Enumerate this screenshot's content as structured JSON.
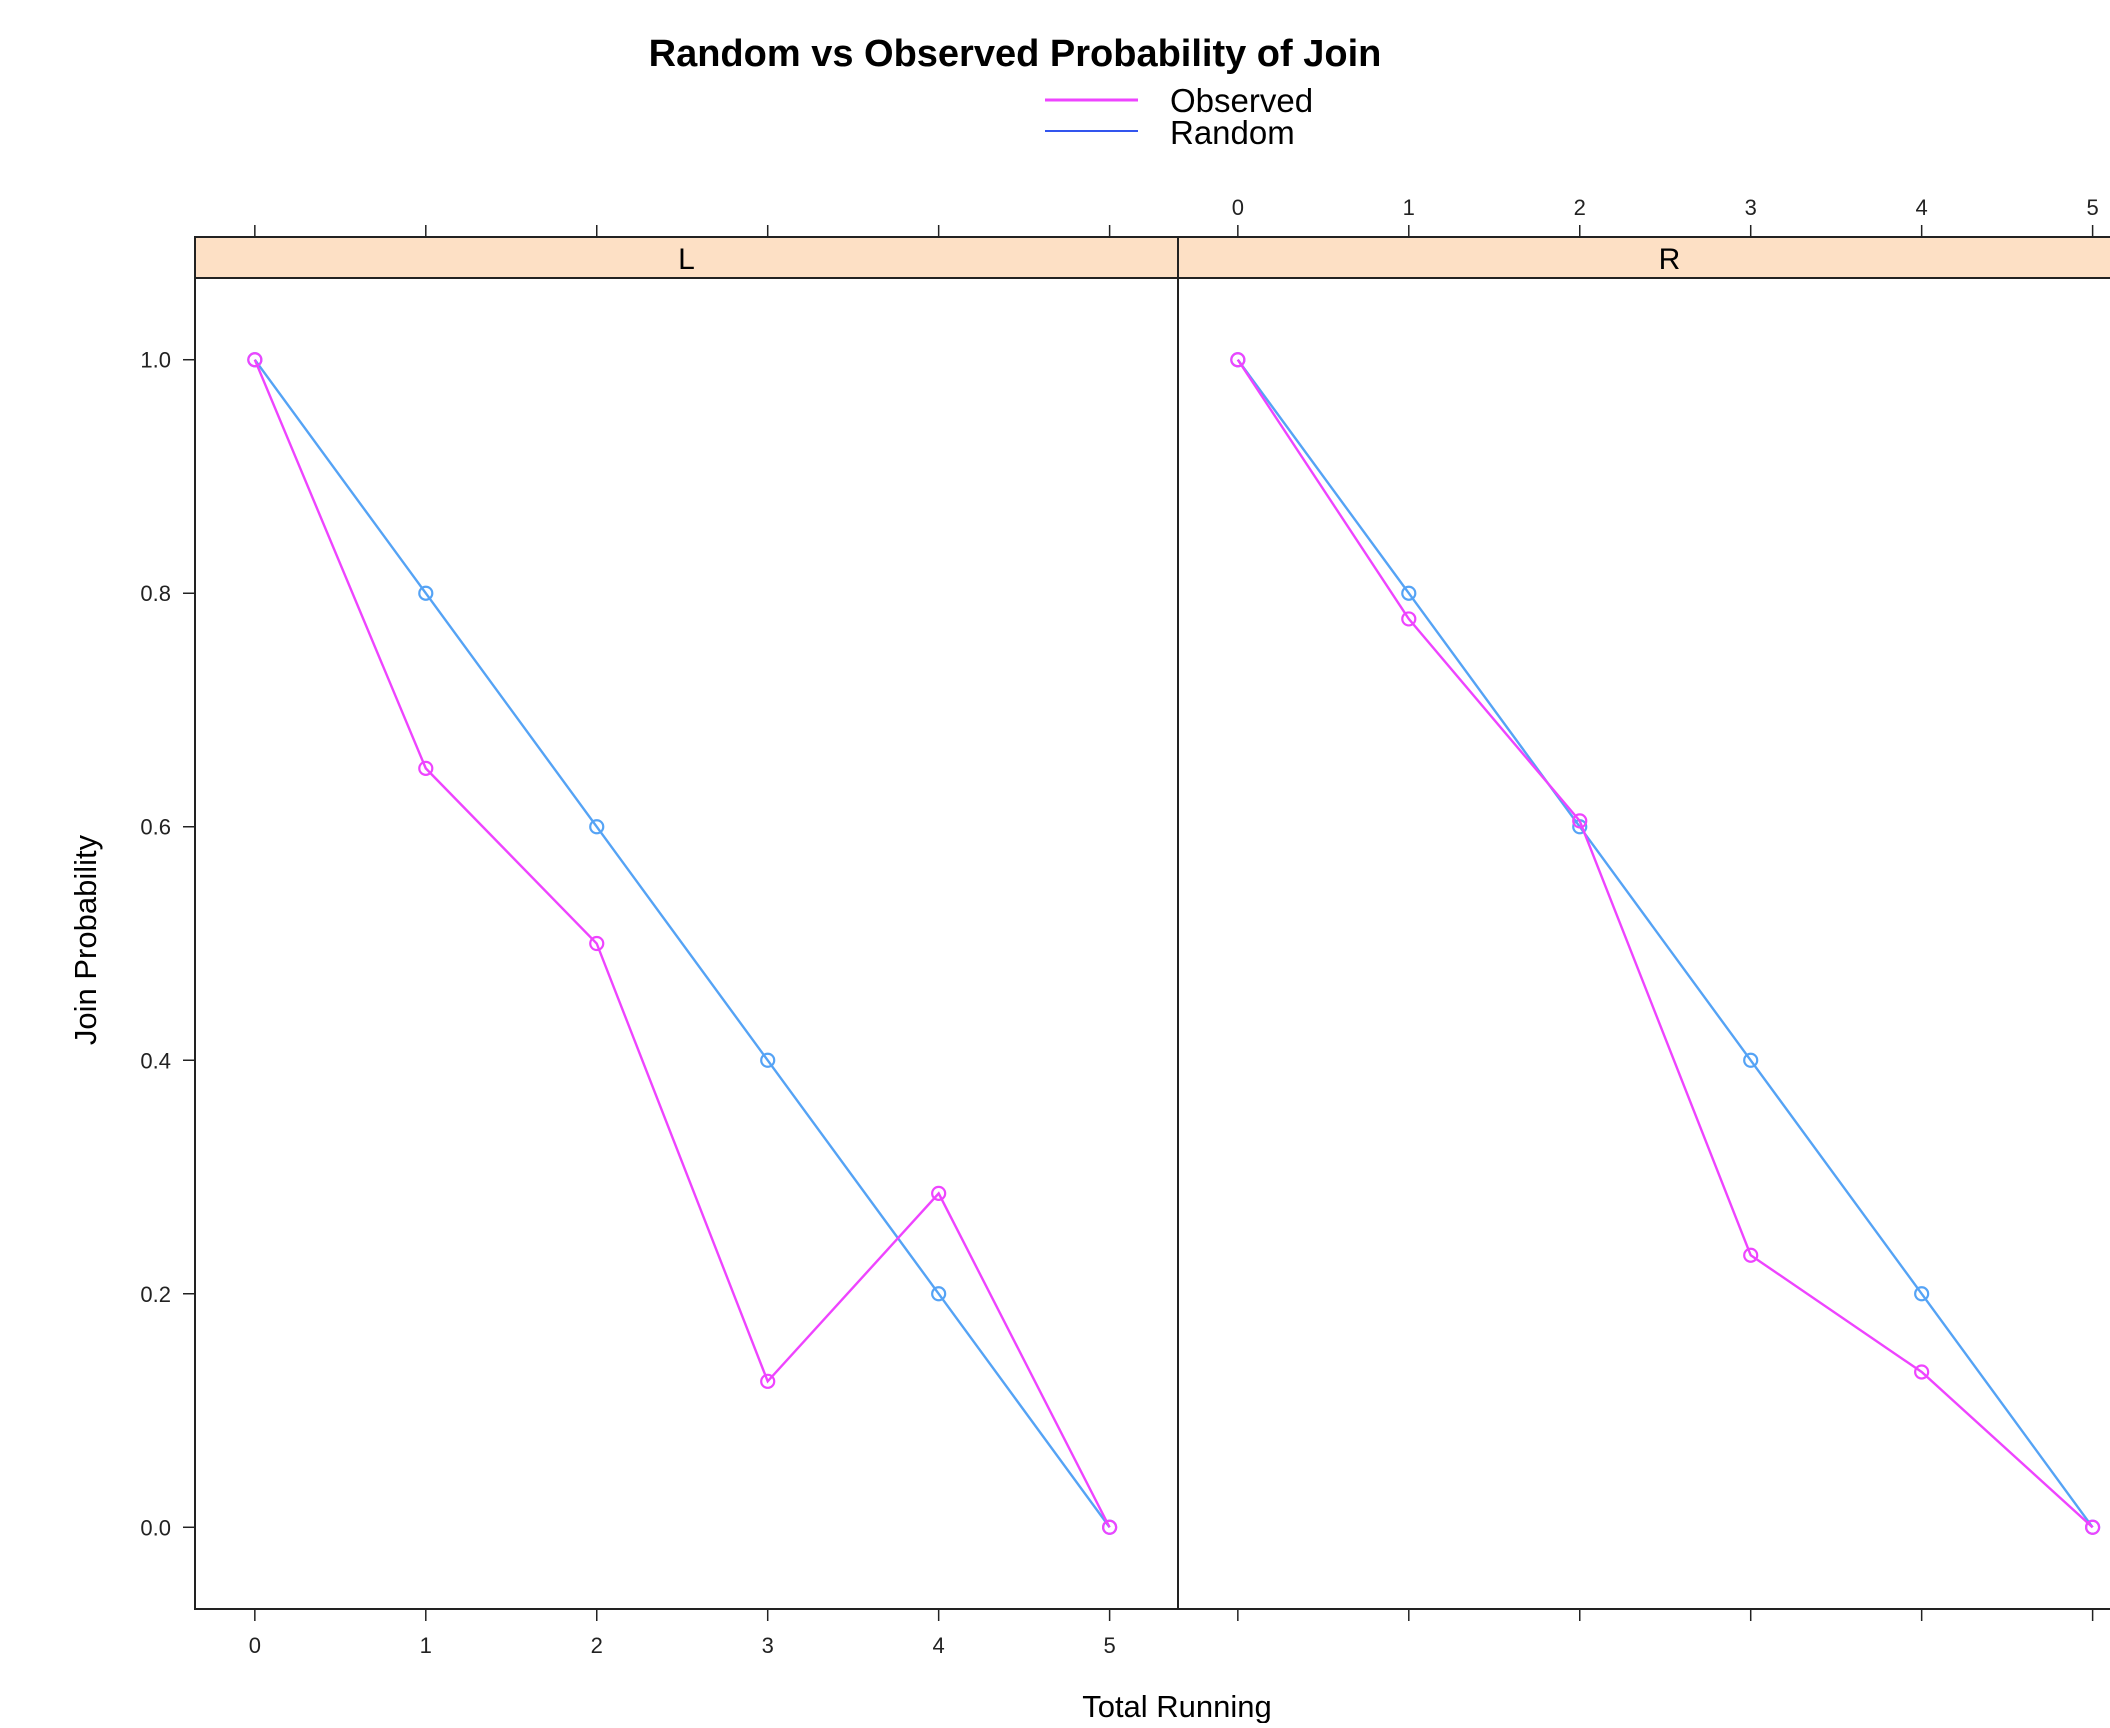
{
  "chart_data": {
    "type": "line",
    "title": "Random vs Observed Probability of Join",
    "xlabel": "Total Running",
    "ylabel": "Join Probability",
    "xlim": [
      -0.35,
      5.4
    ],
    "ylim": [
      -0.07,
      1.07
    ],
    "x_ticks": [
      0,
      1,
      2,
      3,
      4,
      5
    ],
    "y_ticks": [
      0.0,
      0.2,
      0.4,
      0.6,
      0.8,
      1.0
    ],
    "y_tick_labels": [
      "0.0",
      "0.2",
      "0.4",
      "0.6",
      "0.8",
      "1.0"
    ],
    "legend": [
      {
        "name": "Observed",
        "color": "#ee44ff"
      },
      {
        "name": "Random",
        "color": "#3355ee"
      }
    ],
    "legend_position": "top-center",
    "strip_color": "#fde0c5",
    "panels": [
      {
        "label": "L",
        "series": [
          {
            "name": "Observed",
            "color": "#ee44ff",
            "x": [
              0,
              1,
              2,
              3,
              4,
              5
            ],
            "y": [
              1.0,
              0.65,
              0.5,
              0.125,
              0.286,
              0.0
            ]
          },
          {
            "name": "Random",
            "color": "#55a3f5",
            "x": [
              0,
              1,
              2,
              3,
              4,
              5
            ],
            "y": [
              1.0,
              0.8,
              0.6,
              0.4,
              0.2,
              0.0
            ]
          }
        ]
      },
      {
        "label": "R",
        "series": [
          {
            "name": "Observed",
            "color": "#ee44ff",
            "x": [
              0,
              1,
              2,
              3,
              4,
              5
            ],
            "y": [
              1.0,
              0.778,
              0.605,
              0.233,
              0.133,
              0.0
            ]
          },
          {
            "name": "Random",
            "color": "#55a3f5",
            "x": [
              0,
              1,
              2,
              3,
              4,
              5
            ],
            "y": [
              1.0,
              0.8,
              0.6,
              0.4,
              0.2,
              0.0
            ]
          }
        ]
      }
    ]
  }
}
